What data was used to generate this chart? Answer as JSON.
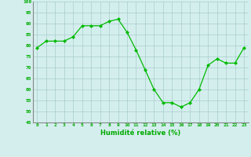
{
  "x": [
    0,
    1,
    2,
    3,
    4,
    5,
    6,
    7,
    8,
    9,
    10,
    11,
    12,
    13,
    14,
    15,
    16,
    17,
    18,
    19,
    20,
    21,
    22,
    23
  ],
  "y": [
    79,
    82,
    82,
    82,
    84,
    89,
    89,
    89,
    91,
    92,
    86,
    78,
    69,
    60,
    54,
    54,
    52,
    54,
    60,
    71,
    74,
    72,
    72,
    79
  ],
  "xlabel": "Humidité relative (%)",
  "ylim": [
    45,
    100
  ],
  "yticks": [
    45,
    50,
    55,
    60,
    65,
    70,
    75,
    80,
    85,
    90,
    95,
    100
  ],
  "xticks": [
    0,
    1,
    2,
    3,
    4,
    5,
    6,
    7,
    8,
    9,
    10,
    11,
    12,
    13,
    14,
    15,
    16,
    17,
    18,
    19,
    20,
    21,
    22,
    23
  ],
  "line_color": "#00bb00",
  "marker_color": "#00bb00",
  "bg_color": "#d4eeee",
  "grid_color": "#aacccc",
  "text_color": "#00aa00"
}
